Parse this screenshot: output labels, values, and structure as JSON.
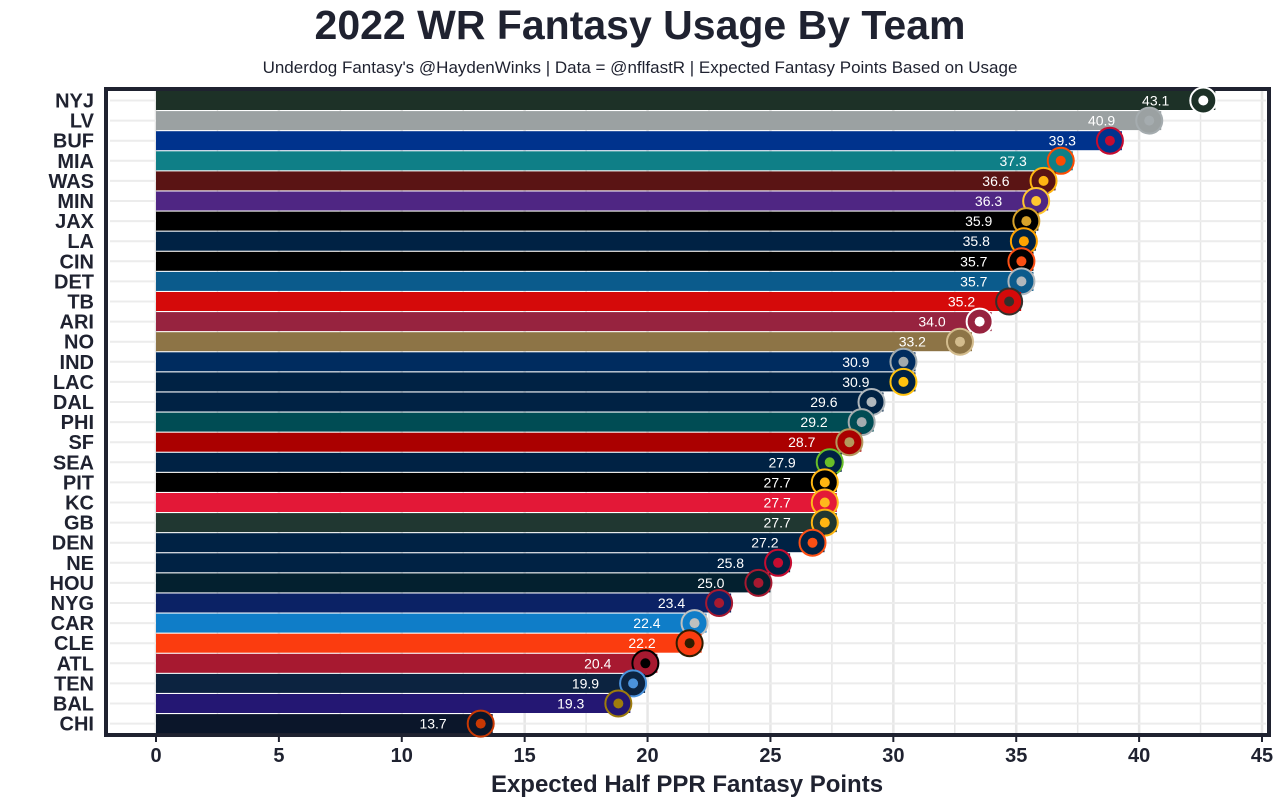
{
  "chart_data": {
    "type": "bar",
    "orientation": "horizontal",
    "title": "2022 WR Fantasy Usage By Team",
    "subtitle": "Underdog Fantasy's @HaydenWinks | Data = @nflfastR | Expected Fantasy Points Based on Usage",
    "xlabel": "Expected Half PPR Fantasy Points",
    "ylabel": "",
    "xlim": [
      0,
      45
    ],
    "xticks": [
      0,
      5,
      10,
      15,
      20,
      25,
      30,
      35,
      40,
      45
    ],
    "grid": true,
    "categories": [
      "NYJ",
      "LV",
      "BUF",
      "MIA",
      "WAS",
      "MIN",
      "JAX",
      "LA",
      "CIN",
      "DET",
      "TB",
      "ARI",
      "NO",
      "IND",
      "LAC",
      "DAL",
      "PHI",
      "SF",
      "SEA",
      "PIT",
      "KC",
      "GB",
      "DEN",
      "NE",
      "HOU",
      "NYG",
      "CAR",
      "CLE",
      "ATL",
      "TEN",
      "BAL",
      "CHI"
    ],
    "values": [
      43.1,
      40.9,
      39.3,
      37.3,
      36.6,
      36.3,
      35.9,
      35.8,
      35.7,
      35.7,
      35.2,
      34.0,
      33.2,
      30.9,
      30.9,
      29.6,
      29.2,
      28.7,
      27.9,
      27.7,
      27.7,
      27.7,
      27.2,
      25.8,
      25.0,
      23.4,
      22.4,
      22.2,
      20.4,
      19.9,
      19.3,
      13.7
    ],
    "value_labels": [
      "43.1",
      "40.9",
      "39.3",
      "37.3",
      "36.6",
      "36.3",
      "35.9",
      "35.8",
      "35.7",
      "35.7",
      "35.2",
      "34.0",
      "33.2",
      "30.9",
      "30.9",
      "29.6",
      "29.2",
      "28.7",
      "27.9",
      "27.7",
      "27.7",
      "27.7",
      "27.2",
      "25.8",
      "25.0",
      "23.4",
      "22.4",
      "22.2",
      "20.4",
      "19.9",
      "19.3",
      "13.7"
    ],
    "colors": [
      "#1d3127",
      "#9ba1a2",
      "#00338d",
      "#0f7f87",
      "#5a1414",
      "#4f2683",
      "#000000",
      "#002244",
      "#000000",
      "#0b5b8c",
      "#d50a0a",
      "#97233f",
      "#8d7446",
      "#002c5f",
      "#002244",
      "#002244",
      "#004c54",
      "#aa0000",
      "#002244",
      "#000000",
      "#e31837",
      "#203731",
      "#002244",
      "#002244",
      "#03202f",
      "#0b2265",
      "#0f7dc8",
      "#fb3c0f",
      "#a71930",
      "#0c2340",
      "#241773",
      "#0b162a"
    ],
    "logo_accents": [
      "#ffffff",
      "#a5acaf",
      "#c60c30",
      "#fc4c02",
      "#ffb612",
      "#ffc62f",
      "#d7a22a",
      "#ffa300",
      "#fb4f14",
      "#b0b7bc",
      "#34302b",
      "#ffffff",
      "#d3bc8d",
      "#a2aaad",
      "#ffc20e",
      "#b0b7bc",
      "#a5acaf",
      "#b3995d",
      "#69be28",
      "#ffb612",
      "#ffb81c",
      "#ffb612",
      "#fb4f14",
      "#c60c30",
      "#a71930",
      "#a71930",
      "#bfc0bf",
      "#311d00",
      "#000000",
      "#4b92db",
      "#9e7c0c",
      "#c83803"
    ],
    "logo_names": [
      "jets-logo",
      "raiders-logo",
      "bills-logo",
      "dolphins-logo",
      "commanders-logo",
      "vikings-logo",
      "jaguars-logo",
      "rams-logo",
      "bengals-logo",
      "lions-logo",
      "buccaneers-logo",
      "cardinals-logo",
      "saints-logo",
      "colts-logo",
      "chargers-logo",
      "cowboys-logo",
      "eagles-logo",
      "49ers-logo",
      "seahawks-logo",
      "steelers-logo",
      "chiefs-logo",
      "packers-logo",
      "broncos-logo",
      "patriots-logo",
      "texans-logo",
      "giants-logo",
      "panthers-logo",
      "browns-logo",
      "falcons-logo",
      "titans-logo",
      "ravens-logo",
      "bears-logo"
    ]
  }
}
